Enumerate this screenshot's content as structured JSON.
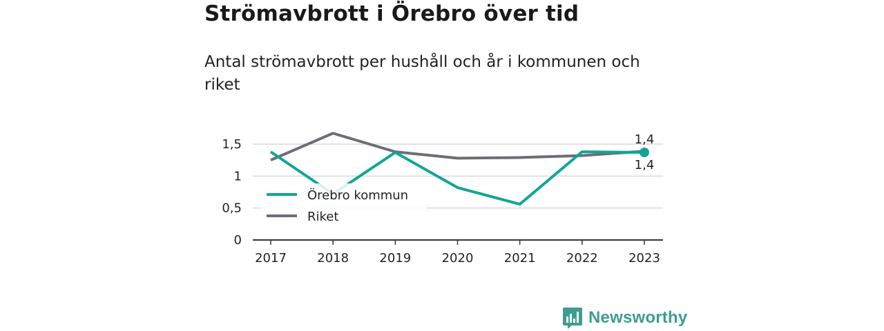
{
  "header": {
    "title": "Strömavbrott i Örebro över tid",
    "subtitle": "Antal strömavbrott per hushåll och år i kommunen och riket"
  },
  "brand": {
    "name": "Newsworthy",
    "color": "#3e9c91"
  },
  "chart_data": {
    "type": "line",
    "title": "Strömavbrott i Örebro över tid",
    "subtitle": "Antal strömavbrott per hushåll och år i kommunen och riket",
    "x": [
      "2017",
      "2018",
      "2019",
      "2020",
      "2021",
      "2022",
      "2023"
    ],
    "ylim": [
      0,
      1.5
    ],
    "yticks": [
      {
        "value": 0,
        "label": "0"
      },
      {
        "value": 0.5,
        "label": "0,5"
      },
      {
        "value": 1,
        "label": "1"
      },
      {
        "value": 1.5,
        "label": "1,5"
      }
    ],
    "grid": true,
    "legend": "bottom-left",
    "series": [
      {
        "name": "Örebro kommun",
        "color": "#12a596",
        "values": [
          1.38,
          0.72,
          1.37,
          0.82,
          0.56,
          1.38,
          1.37
        ],
        "end_label": "1,4"
      },
      {
        "name": "Riket",
        "color": "#6e6c76",
        "values": [
          1.25,
          1.67,
          1.38,
          1.28,
          1.29,
          1.32,
          1.39
        ],
        "end_label": "1,4"
      }
    ]
  }
}
